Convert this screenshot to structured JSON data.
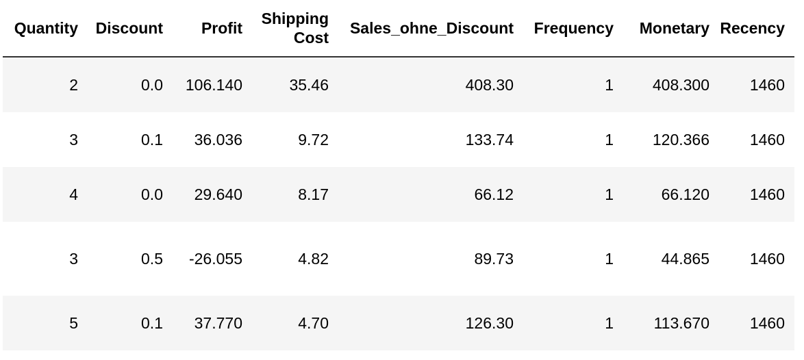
{
  "table": {
    "columns": [
      {
        "label": "Quantity"
      },
      {
        "label": "Discount"
      },
      {
        "label": "Profit"
      },
      {
        "label_line1": "Shipping",
        "label_line2": "Cost"
      },
      {
        "label": "Sales_ohne_Discount"
      },
      {
        "label": "Frequency"
      },
      {
        "label": "Monetary"
      },
      {
        "label": "Recency"
      }
    ],
    "rows": [
      [
        "2",
        "0.0",
        "106.140",
        "35.46",
        "408.30",
        "1",
        "408.300",
        "1460"
      ],
      [
        "3",
        "0.1",
        "36.036",
        "9.72",
        "133.74",
        "1",
        "120.366",
        "1460"
      ],
      [
        "4",
        "0.0",
        "29.640",
        "8.17",
        "66.12",
        "1",
        "66.120",
        "1460"
      ],
      [
        "3",
        "0.5",
        "-26.055",
        "4.82",
        "89.73",
        "1",
        "44.865",
        "1460"
      ],
      [
        "5",
        "0.1",
        "37.770",
        "4.70",
        "126.30",
        "1",
        "113.670",
        "1460"
      ]
    ]
  }
}
